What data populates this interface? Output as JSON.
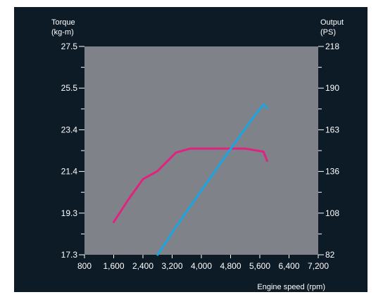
{
  "chart_data": {
    "type": "line",
    "xlabel": "Engine speed (rpm)",
    "y_left_label": [
      "Torque",
      "(kg-m)"
    ],
    "y_right_label": [
      "Output",
      "(PS)"
    ],
    "x_ticks": [
      "800",
      "1,600",
      "2,400",
      "3,200",
      "4,000",
      "4,800",
      "5,600",
      "6,400",
      "7,200"
    ],
    "xlim": [
      800,
      7200
    ],
    "y_left_ticks": [
      "27.5",
      "25.5",
      "23.4",
      "21.4",
      "19.3",
      "17.3"
    ],
    "y_left_lim": [
      17.3,
      27.5
    ],
    "y_right_ticks": [
      "218",
      "190",
      "163",
      "136",
      "108",
      "82"
    ],
    "y_right_lim": [
      82,
      218
    ],
    "grid": false,
    "series": [
      {
        "axis": "left",
        "color": "#e0237e",
        "x": [
          1600,
          2000,
          2400,
          2800,
          3300,
          3700,
          4500,
          5200,
          5700,
          5800
        ],
        "y": [
          18.9,
          20.0,
          21.0,
          21.4,
          22.3,
          22.5,
          22.5,
          22.5,
          22.35,
          21.9
        ]
      },
      {
        "axis": "right",
        "color": "#1aa3e0",
        "x": [
          2800,
          3300,
          4000,
          4800,
          5400,
          5700,
          5800
        ],
        "y": [
          82,
          100,
          124,
          151,
          171,
          180,
          178
        ]
      }
    ],
    "colors": {
      "background": "#0d1b26",
      "plot_area": "#808289",
      "text": "#ffffff"
    }
  }
}
